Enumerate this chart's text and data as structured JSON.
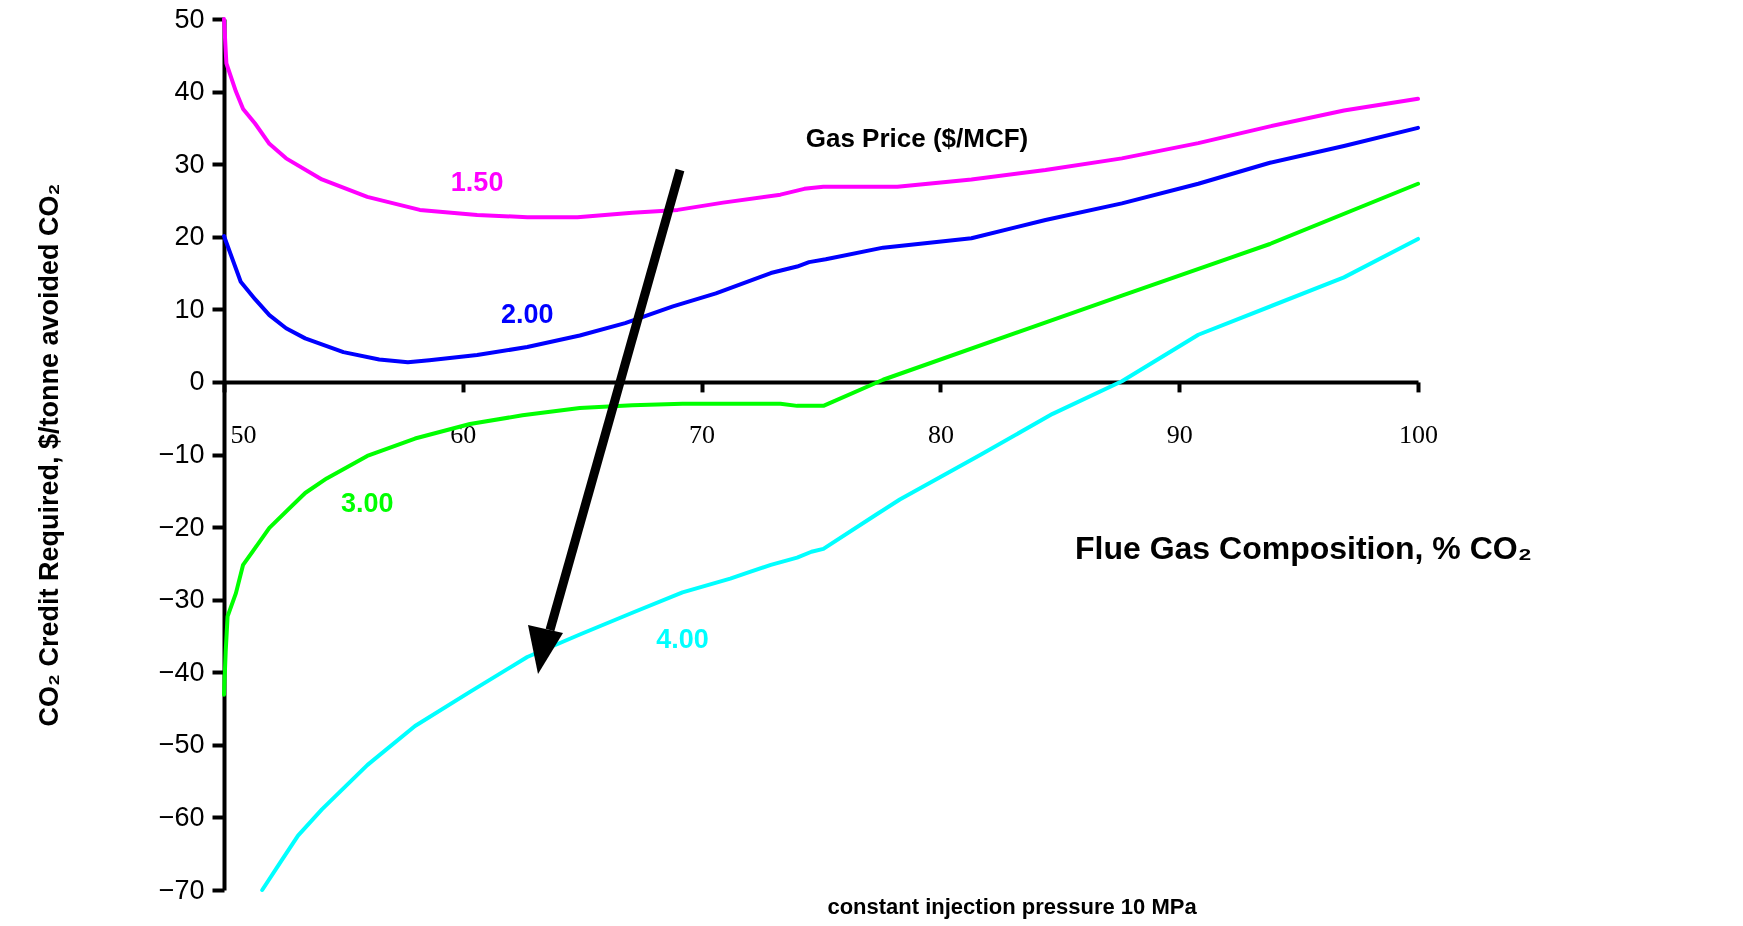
{
  "chart_data": {
    "type": "line",
    "xlabel": "Flue Gas Composition, % CO₂",
    "ylabel": "CO₂ Credit Required, $/tonne avoided CO₂",
    "legend_title": "Gas Price ($/MCF)",
    "annotations": [
      "constant injection pressure 10 MPa"
    ],
    "xlim": [
      50,
      100
    ],
    "xticks": [
      50,
      60,
      70,
      80,
      90,
      100
    ],
    "ylim": [
      -70,
      50
    ],
    "yticks": [
      -70,
      -60,
      -50,
      -40,
      -30,
      -20,
      -10,
      0,
      10,
      20,
      30,
      40,
      50
    ],
    "grid": false,
    "line_style": "solid",
    "marker": "none",
    "series": [
      {
        "name": "1.50",
        "color": "#ff00ff",
        "x": [
          50,
          50.1,
          50.5,
          50.8,
          51.3,
          51.9,
          52.6,
          54.1,
          56.0,
          58.2,
          60.6,
          62.7,
          64.8,
          67.1,
          69.0,
          70.9,
          73.3,
          74.3,
          75.1,
          78.2,
          81.3,
          84.4,
          87.6,
          90.8,
          93.8,
          96.9,
          100
        ],
        "values": [
          50,
          43.9,
          40,
          37.6,
          35.6,
          32.8,
          30.8,
          27.9,
          25.5,
          23.7,
          23.0,
          22.7,
          22.7,
          23.3,
          23.7,
          24.7,
          25.8,
          26.6,
          26.9,
          26.9,
          27.9,
          29.2,
          30.8,
          32.9,
          35.2,
          37.4,
          39.0
        ]
      },
      {
        "name": "2.00",
        "color": "#0000ff",
        "x": [
          50,
          50.7,
          51.3,
          51.9,
          52.6,
          53.4,
          55.0,
          56.5,
          57.7,
          58.6,
          60.6,
          62.7,
          64.9,
          66.8,
          68.8,
          70.6,
          72.9,
          74.0,
          74.5,
          75.2,
          77.6,
          81.3,
          84.4,
          87.6,
          90.8,
          93.8,
          96.9,
          100
        ],
        "values": [
          20.1,
          13.8,
          11.4,
          9.2,
          7.4,
          6.0,
          4.1,
          3.1,
          2.7,
          3.0,
          3.7,
          4.8,
          6.4,
          8.1,
          10.4,
          12.2,
          15.0,
          15.9,
          16.5,
          16.9,
          18.5,
          19.8,
          22.3,
          24.6,
          27.3,
          30.2,
          32.5,
          35.0
        ]
      },
      {
        "name": "3.00",
        "color": "#00ff00",
        "x": [
          50,
          50.07,
          50.15,
          50.5,
          50.8,
          51.3,
          51.9,
          53.4,
          54.3,
          56.0,
          58.0,
          60.3,
          62.5,
          64.9,
          67.1,
          69.2,
          73.3,
          74.0,
          75.1,
          77.6,
          87.6,
          93.8,
          100
        ],
        "values": [
          -43.1,
          -37.2,
          -32.3,
          -29.1,
          -25.2,
          -22.9,
          -20.1,
          -15.3,
          -13.3,
          -10.2,
          -7.8,
          -5.8,
          -4.6,
          -3.6,
          -3.2,
          -3.0,
          -3.0,
          -3.3,
          -3.3,
          0.3,
          11.9,
          19.0,
          27.3
        ]
      },
      {
        "name": "4.00",
        "color": "#00ffff",
        "x": [
          51.6,
          52.4,
          53.1,
          54.1,
          56.0,
          58.0,
          60.3,
          62.7,
          64.9,
          67.1,
          69.2,
          71.2,
          71.9,
          72.9,
          74.0,
          74.6,
          75.1,
          77.4,
          78.3,
          81.7,
          84.7,
          87.6,
          90.8,
          96.9,
          100
        ],
        "values": [
          -70,
          -66.0,
          -62.5,
          -58.9,
          -52.8,
          -47.4,
          -42.7,
          -37.9,
          -34.8,
          -31.8,
          -29.0,
          -27.1,
          -26.3,
          -25.2,
          -24.2,
          -23.4,
          -23.0,
          -18.1,
          -16.2,
          -10.0,
          -4.4,
          0.1,
          6.5,
          14.4,
          19.7
        ]
      }
    ]
  }
}
